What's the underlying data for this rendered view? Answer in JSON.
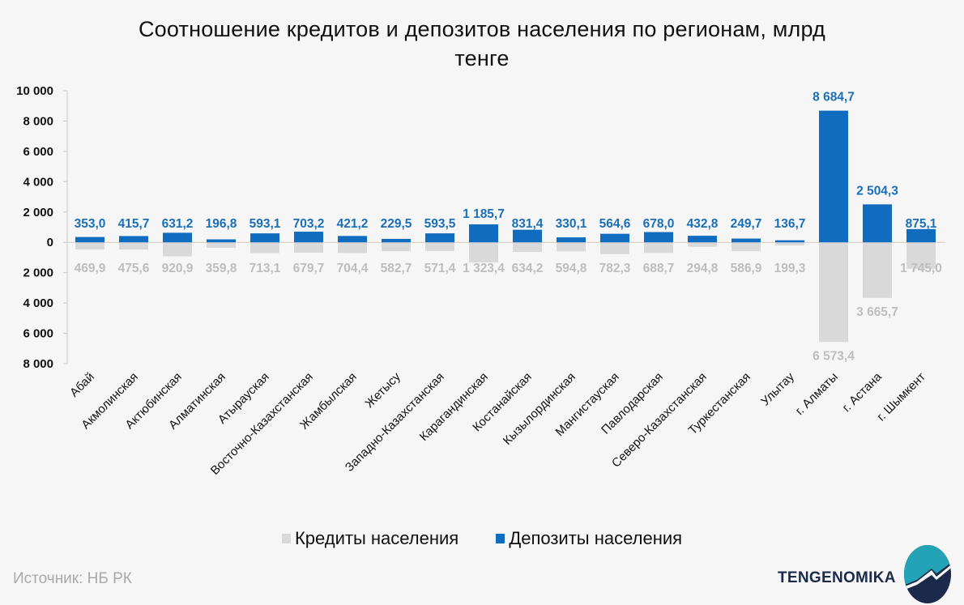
{
  "chart_data": {
    "type": "bar",
    "title": "Соотношение кредитов и депозитов населения по регионам, млрд тенге",
    "title_lines": [
      "Соотношение кредитов и депозитов населения по регионам, млрд",
      "тенге"
    ],
    "xlabel": "",
    "ylabel": "",
    "ylim": [
      -8000,
      10000
    ],
    "yticks": [
      10000,
      8000,
      6000,
      4000,
      2000,
      0,
      -2000,
      -4000,
      -6000,
      -8000
    ],
    "ytick_labels": [
      "10 000",
      "8 000",
      "6 000",
      "4 000",
      "2 000",
      "0",
      "2 000",
      "4 000",
      "6 000",
      "8 000"
    ],
    "grid": false,
    "legend_position": "bottom",
    "categories": [
      "Абай",
      "Акмолинская",
      "Актюбинская",
      "Алматинская",
      "Атырауская",
      "Восточно-Казахстанская",
      "Жамбылская",
      "Жетысу",
      "Западно-Казахстанская",
      "Карагандинская",
      "Костанайская",
      "Кызылординская",
      "Мангистауская",
      "Павлодарская",
      "Северо-Казахстанская",
      "Туркестанская",
      "Улытау",
      "г. Алматы",
      "г. Астана",
      "г. Шымкент"
    ],
    "series": [
      {
        "name": "Кредиты населения",
        "color": "#d9d9d9",
        "direction": "down",
        "values": [
          469.9,
          475.6,
          920.9,
          359.8,
          713.1,
          679.7,
          704.4,
          582.7,
          571.4,
          1323.4,
          634.2,
          594.8,
          782.3,
          688.7,
          294.8,
          586.9,
          199.3,
          6573.4,
          3665.7,
          1745.0
        ],
        "labels": [
          "469,9",
          "475,6",
          "920,9",
          "359,8",
          "713,1",
          "679,7",
          "704,4",
          "582,7",
          "571,4",
          "1 323,4",
          "634,2",
          "594,8",
          "782,3",
          "688,7",
          "294,8",
          "586,9",
          "199,3",
          "6 573,4",
          "3 665,7",
          "1 745,0"
        ]
      },
      {
        "name": "Депозиты населения",
        "color": "#0f6cbf",
        "direction": "up",
        "values": [
          353.0,
          415.7,
          631.2,
          196.8,
          593.1,
          703.2,
          421.2,
          229.5,
          593.5,
          1185.7,
          831.4,
          330.1,
          564.6,
          678.0,
          432.8,
          249.7,
          136.7,
          8684.7,
          2504.3,
          875.1
        ],
        "labels": [
          "353,0",
          "415,7",
          "631,2",
          "196,8",
          "593,1",
          "703,2",
          "421,2",
          "229,5",
          "593,5",
          "1 185,7",
          "831,4",
          "330,1",
          "564,6",
          "678,0",
          "432,8",
          "249,7",
          "136,7",
          "8 684,7",
          "2 504,3",
          "875,1"
        ]
      }
    ]
  },
  "legend": {
    "items": [
      {
        "label": "Кредиты населения",
        "color": "#d9d9d9"
      },
      {
        "label": "Депозиты населения",
        "color": "#0f6cbf"
      }
    ]
  },
  "footer": {
    "source": "Источник: НБ РК",
    "brand": "TENGENOMIKA",
    "logo_icon": "tengenomika-logo-icon"
  }
}
